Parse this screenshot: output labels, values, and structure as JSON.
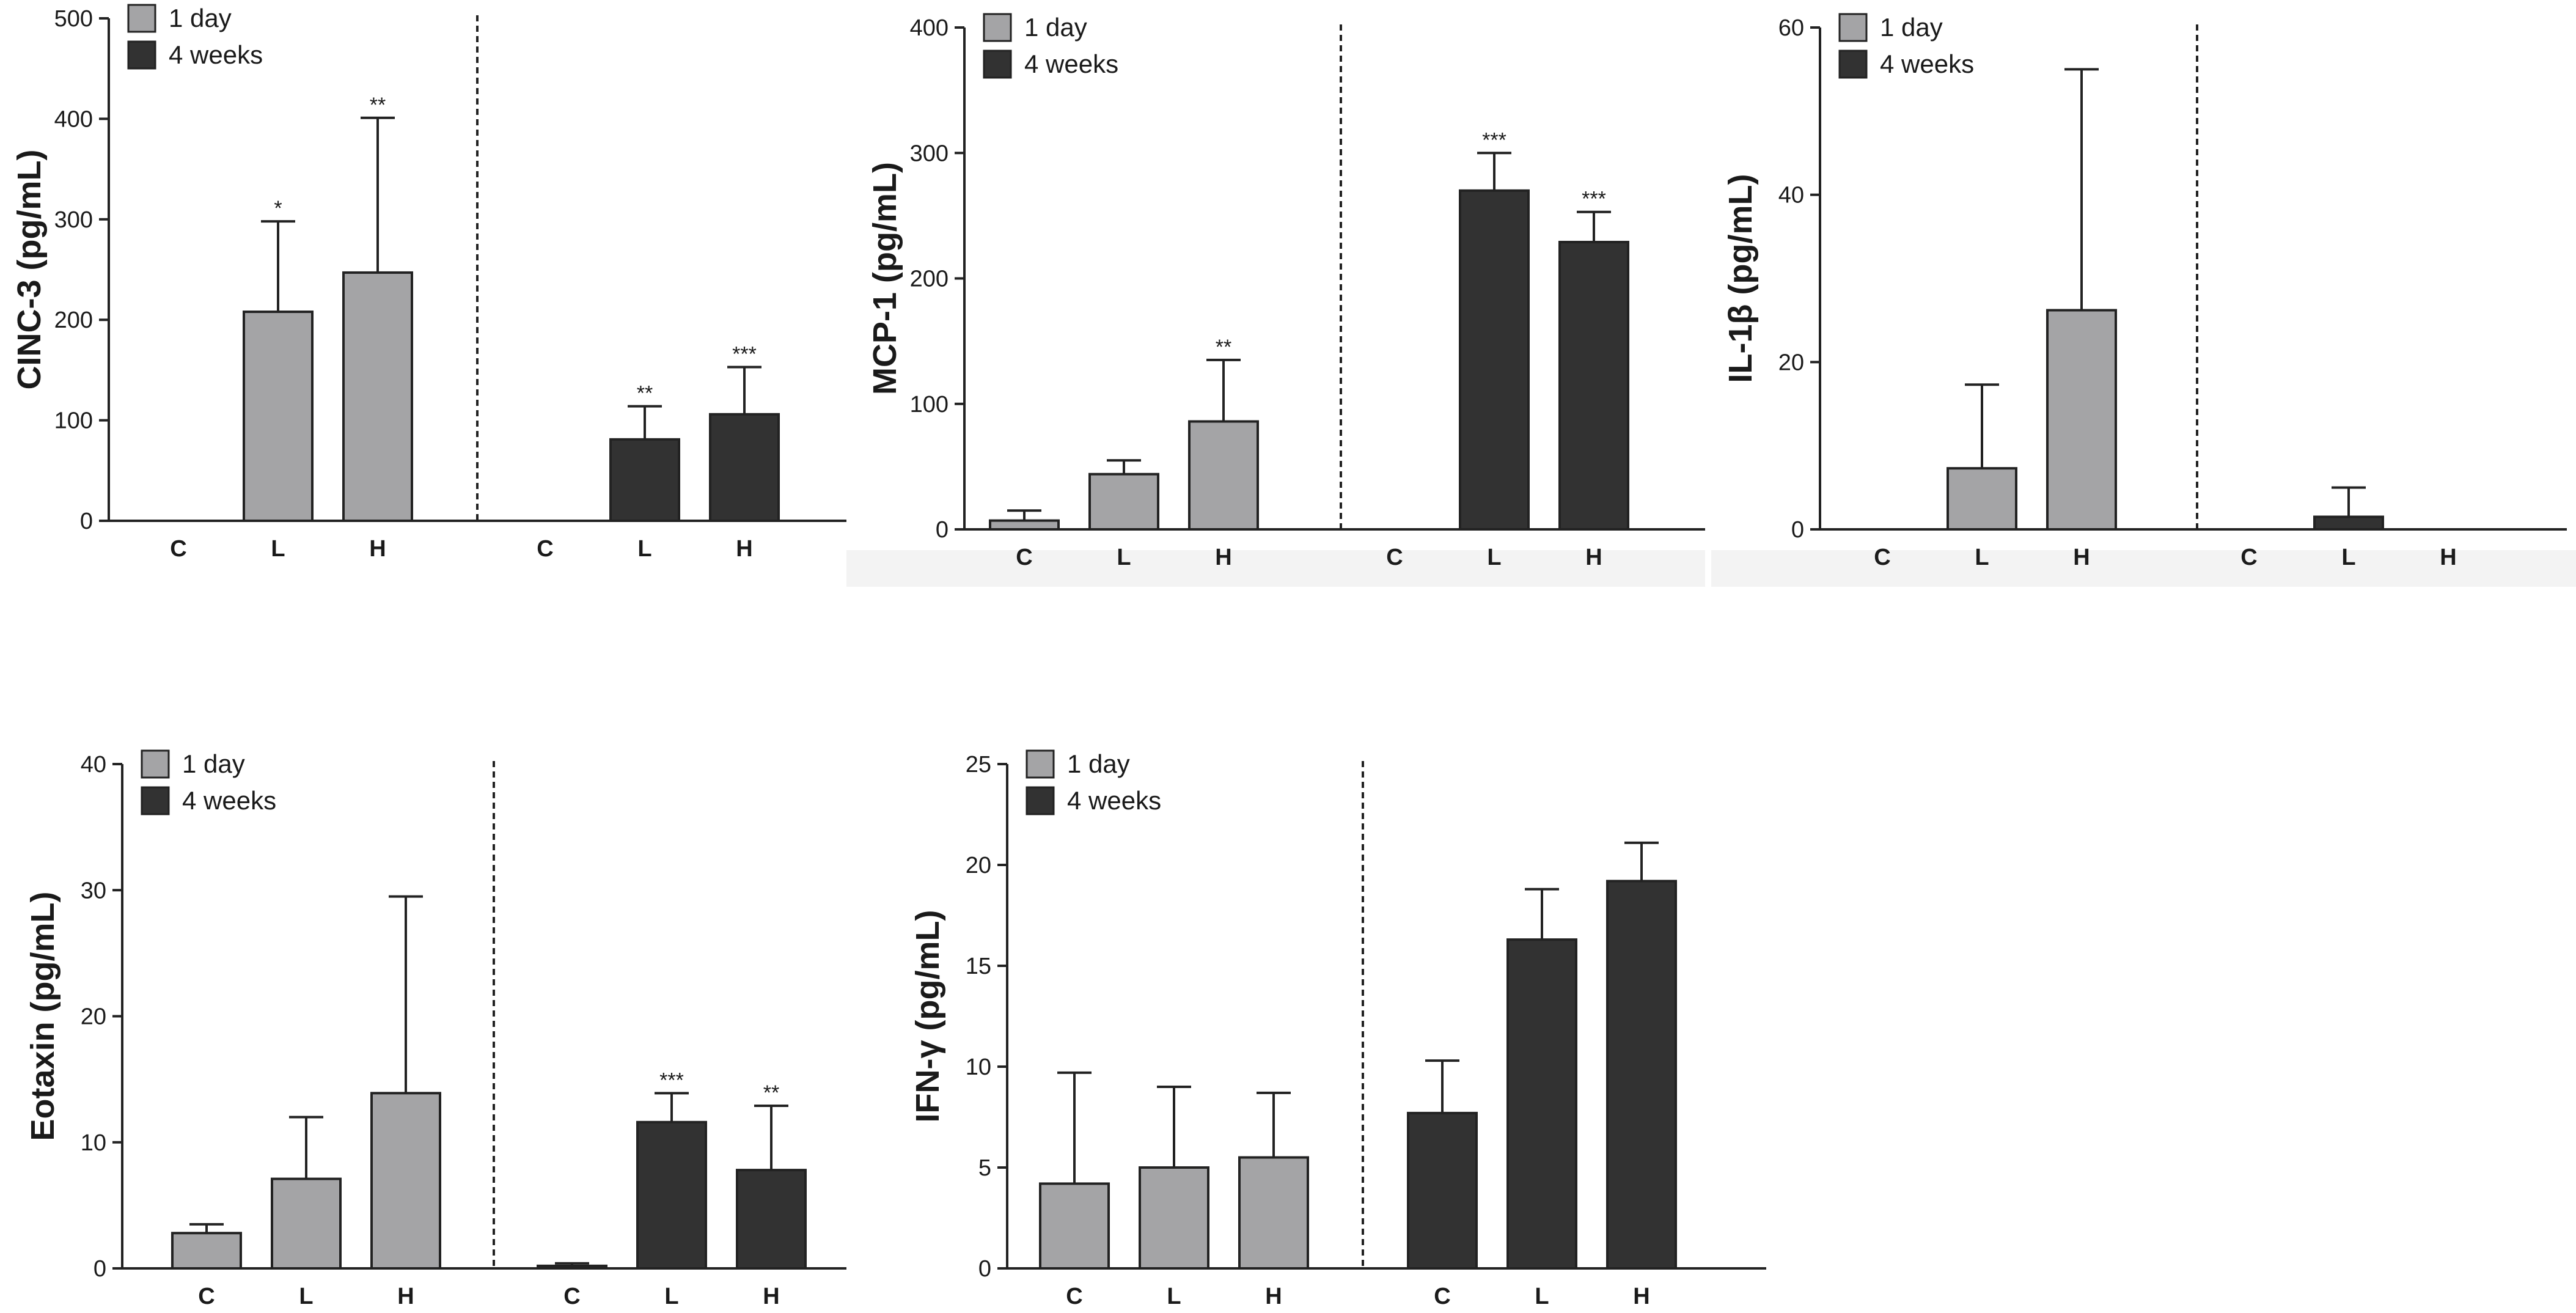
{
  "figure": {
    "legend_labels": [
      "1 day",
      "4 weeks"
    ],
    "colors": {
      "day1": "#a4a4a6",
      "week4": "#323232",
      "axis": "#222222",
      "text": "#1a1a1a"
    }
  },
  "chart_data": [
    {
      "id": "cinc3",
      "type": "bar",
      "ylabel": "CINC-3 (pg/mL)",
      "ylim": [
        0,
        500
      ],
      "yticks": [
        0,
        100,
        200,
        300,
        400,
        500
      ],
      "groups": [
        {
          "name": "1 day",
          "categories": [
            "C",
            "L",
            "H"
          ],
          "values": [
            0,
            208,
            247
          ],
          "errors": [
            0,
            90,
            154
          ],
          "stars": [
            "",
            "*",
            "**"
          ]
        },
        {
          "name": "4 weeks",
          "categories": [
            "C",
            "L",
            "H"
          ],
          "values": [
            0,
            81,
            106
          ],
          "errors": [
            0,
            33,
            47
          ],
          "stars": [
            "",
            "**",
            "***"
          ]
        }
      ],
      "legend": "top-left"
    },
    {
      "id": "mcp1",
      "type": "bar",
      "ylabel": "MCP-1 (pg/mL)",
      "ylim": [
        0,
        400
      ],
      "yticks": [
        0,
        100,
        200,
        300,
        400
      ],
      "groups": [
        {
          "name": "1 day",
          "categories": [
            "C",
            "L",
            "H"
          ],
          "values": [
            7,
            44,
            86
          ],
          "errors": [
            8,
            11,
            49
          ],
          "stars": [
            "",
            "",
            "**"
          ]
        },
        {
          "name": "4 weeks",
          "categories": [
            "C",
            "L",
            "H"
          ],
          "values": [
            0,
            270,
            229
          ],
          "errors": [
            0,
            30,
            24
          ],
          "stars": [
            "",
            "***",
            "***"
          ]
        }
      ],
      "legend": "top-left"
    },
    {
      "id": "il1b",
      "type": "bar",
      "ylabel": "IL-1β (pg/mL)",
      "ylim": [
        0,
        60
      ],
      "yticks": [
        0,
        20,
        40,
        60
      ],
      "groups": [
        {
          "name": "1 day",
          "categories": [
            "C",
            "L",
            "H"
          ],
          "values": [
            0,
            7.3,
            26.2
          ],
          "errors": [
            0,
            10,
            28.8
          ],
          "stars": [
            "",
            "",
            ""
          ]
        },
        {
          "name": "4 weeks",
          "categories": [
            "C",
            "L",
            "H"
          ],
          "values": [
            0,
            1.5,
            0
          ],
          "errors": [
            0,
            3.5,
            0
          ],
          "stars": [
            "",
            "",
            ""
          ]
        }
      ],
      "legend": "top-left"
    },
    {
      "id": "eotaxin",
      "type": "bar",
      "ylabel": "Eotaxin (pg/mL)",
      "ylim": [
        0,
        40
      ],
      "yticks": [
        0,
        10,
        20,
        30,
        40
      ],
      "groups": [
        {
          "name": "1 day",
          "categories": [
            "C",
            "L",
            "H"
          ],
          "values": [
            2.8,
            7.1,
            13.9
          ],
          "errors": [
            0.7,
            4.9,
            15.6
          ],
          "stars": [
            "",
            "",
            ""
          ]
        },
        {
          "name": "4 weeks",
          "categories": [
            "C",
            "L",
            "H"
          ],
          "values": [
            0.2,
            11.6,
            7.8
          ],
          "errors": [
            0.2,
            2.3,
            5.1
          ],
          "stars": [
            "",
            "***",
            "**"
          ]
        }
      ],
      "legend": "top-left"
    },
    {
      "id": "ifng",
      "type": "bar",
      "ylabel": "IFN-γ (pg/mL)",
      "ylim": [
        0,
        25
      ],
      "yticks": [
        0,
        5,
        10,
        15,
        20,
        25
      ],
      "groups": [
        {
          "name": "1 day",
          "categories": [
            "C",
            "L",
            "H"
          ],
          "values": [
            4.2,
            5.0,
            5.5
          ],
          "errors": [
            5.5,
            4.0,
            3.2
          ],
          "stars": [
            "",
            "",
            ""
          ]
        },
        {
          "name": "4 weeks",
          "categories": [
            "C",
            "L",
            "H"
          ],
          "values": [
            7.7,
            16.3,
            19.2
          ],
          "errors": [
            2.6,
            2.5,
            1.9
          ],
          "stars": [
            "",
            "",
            ""
          ]
        }
      ],
      "legend": "top-left"
    }
  ]
}
